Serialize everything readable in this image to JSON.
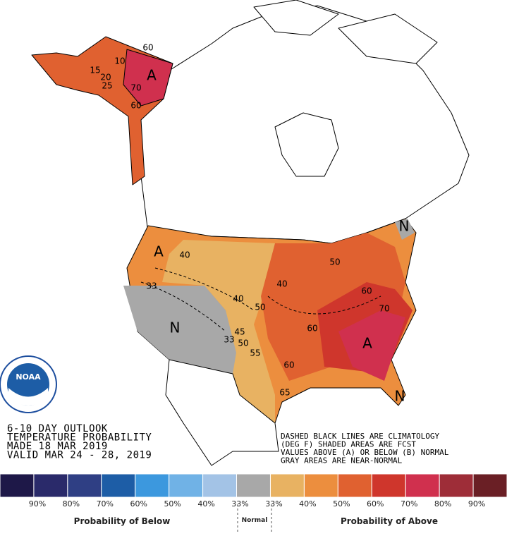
{
  "map": {
    "labels": [
      "60",
      "10",
      "15",
      "20",
      "25",
      "70",
      "60",
      "A",
      "A",
      "40",
      "33",
      "N",
      "40",
      "50",
      "50",
      "40",
      "60",
      "70",
      "60",
      "A",
      "33",
      "45",
      "50",
      "55",
      "60",
      "65",
      "N",
      "N"
    ]
  },
  "title_block": {
    "lines": [
      "6-10 DAY OUTLOOK",
      "TEMPERATURE PROBABILITY",
      "MADE  18 MAR 2019",
      "VALID  MAR 24 - 28, 2019"
    ]
  },
  "notes": {
    "lines": [
      "DASHED BLACK LINES ARE CLIMATOLOGY",
      "(DEG F) SHADED AREAS ARE FCST",
      "VALUES ABOVE (A) OR BELOW (B) NORMAL",
      "GRAY AREAS ARE NEAR-NORMAL"
    ]
  },
  "logo": {
    "text": "NOAA"
  },
  "legend": {
    "colors": [
      "#1e1848",
      "#2a2a6a",
      "#2f3f84",
      "#1d5da6",
      "#3c98de",
      "#70b2e6",
      "#a3c3e6",
      "#a8a8a8",
      "#e8b262",
      "#ec8e3e",
      "#e06130",
      "#cf362c",
      "#d0304e",
      "#9e2d38",
      "#6a1f25"
    ],
    "labels": [
      "90%",
      "80%",
      "70%",
      "60%",
      "50%",
      "40%",
      "33%",
      "33%",
      "40%",
      "50%",
      "60%",
      "70%",
      "80%",
      "90%"
    ],
    "below_title": "Probability of Below",
    "normal_title": "Normal",
    "above_title": "Probability of Above"
  }
}
